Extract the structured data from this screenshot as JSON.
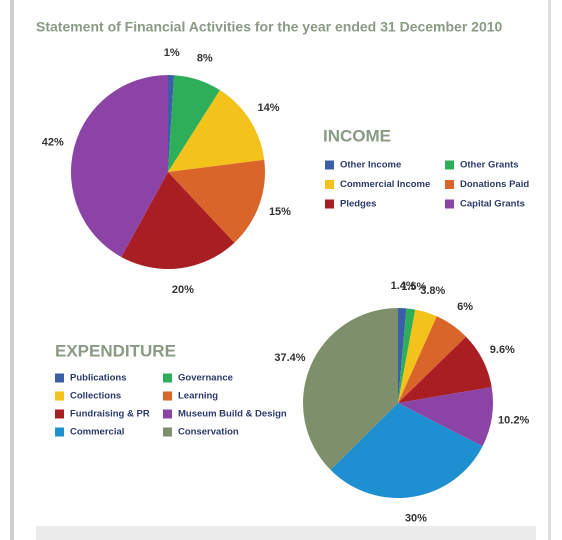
{
  "title": "Statement of Financial Activities for the year ended 31 December 2010",
  "chart_data": [
    {
      "type": "pie",
      "title": "INCOME",
      "categories": [
        "Other Income",
        "Other Grants",
        "Commercial Income",
        "Donations Paid",
        "Pledges",
        "Capital Grants"
      ],
      "values": [
        1,
        8,
        14,
        15,
        20,
        42
      ],
      "value_labels": [
        "1%",
        "8%",
        "14%",
        "15%",
        "20%",
        "42%"
      ],
      "colors": [
        "#3a5fa8",
        "#2fae5a",
        "#f3c21b",
        "#d9652a",
        "#a81e23",
        "#8b44a6"
      ]
    },
    {
      "type": "pie",
      "title": "EXPENDITURE",
      "categories": [
        "Publications",
        "Governance",
        "Collections",
        "Learning",
        "Fundraising & PR",
        "Museum Build & Design",
        "Commercial",
        "Conservation"
      ],
      "values": [
        1.4,
        1.5,
        3.8,
        6,
        9.6,
        10.2,
        30,
        37.4
      ],
      "value_labels": [
        "1.4%",
        "1.5%",
        "3.8%",
        "6%",
        "9.6%",
        "10.2%",
        "30%",
        "37.4%"
      ],
      "colors": [
        "#3a5fa8",
        "#2fae5a",
        "#f3c21b",
        "#d9652a",
        "#a81e23",
        "#8b44a6",
        "#1e8fd0",
        "#7d8f6b"
      ]
    }
  ]
}
